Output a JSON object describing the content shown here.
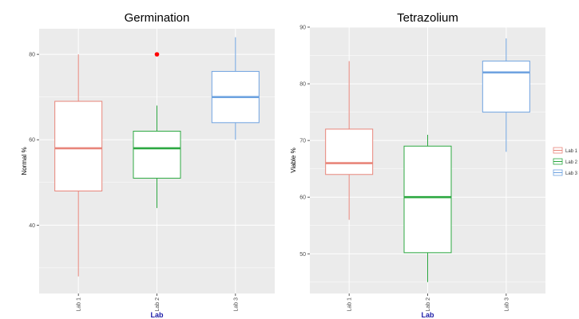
{
  "chart_data": [
    {
      "type": "boxplot",
      "title": "Germination",
      "xlabel": "Lab",
      "ylabel": "Normal %",
      "ylim": [
        24,
        86
      ],
      "yticks": [
        40,
        60,
        80
      ],
      "categories": [
        "Lab 1",
        "Lab 2",
        "Lab 3"
      ],
      "grid": true,
      "boxes": [
        {
          "name": "Lab 1",
          "color": "#E8857A",
          "whisker_low": 28,
          "q1": 48,
          "median": 58,
          "q3": 69,
          "whisker_high": 80,
          "outliers": []
        },
        {
          "name": "Lab 2",
          "color": "#2CA841",
          "whisker_low": 44,
          "q1": 51,
          "median": 58,
          "q3": 62,
          "whisker_high": 68,
          "outliers": [
            80
          ]
        },
        {
          "name": "Lab 3",
          "color": "#6FA3E0",
          "whisker_low": 60,
          "q1": 64,
          "median": 70,
          "q3": 76,
          "whisker_high": 84,
          "outliers": []
        }
      ],
      "outlier_color": "#FF0000"
    },
    {
      "type": "boxplot",
      "title": "Tetrazolium",
      "xlabel": "Lab",
      "ylabel": "Viable %",
      "ylim": [
        43,
        90
      ],
      "yticks": [
        50,
        60,
        70,
        80,
        90
      ],
      "categories": [
        "Lab 1",
        "Lab 2",
        "Lab 3"
      ],
      "grid": true,
      "boxes": [
        {
          "name": "Lab 1",
          "color": "#E8857A",
          "whisker_low": 56,
          "q1": 64,
          "median": 66,
          "q3": 72,
          "whisker_high": 84,
          "outliers": []
        },
        {
          "name": "Lab 2",
          "color": "#2CA841",
          "whisker_low": 45,
          "q1": 50.2,
          "median": 60,
          "q3": 69,
          "whisker_high": 71,
          "outliers": []
        },
        {
          "name": "Lab 3",
          "color": "#6FA3E0",
          "whisker_low": 68,
          "q1": 75,
          "median": 82,
          "q3": 84,
          "whisker_high": 88,
          "outliers": []
        }
      ],
      "outlier_color": "#FF0000"
    }
  ],
  "legend": {
    "position": "right",
    "entries": [
      {
        "label": "Lab 1",
        "color": "#E8857A"
      },
      {
        "label": "Lab 2",
        "color": "#2CA841"
      },
      {
        "label": "Lab 3",
        "color": "#6FA3E0"
      }
    ]
  },
  "colors": {
    "panel_background": "#EBEBEB",
    "grid": "#FFFFFF",
    "box_fill": "#FFFFFF"
  }
}
